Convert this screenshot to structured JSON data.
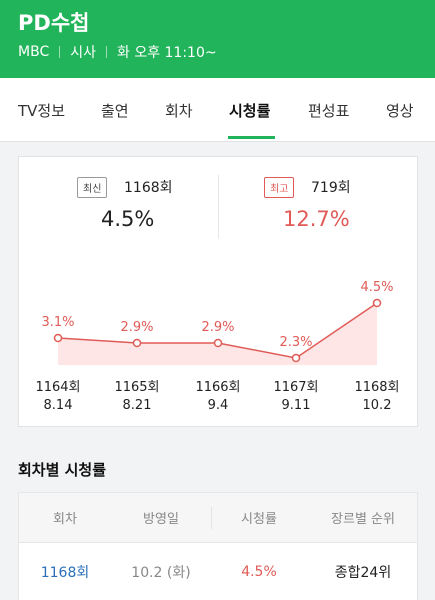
{
  "header": {
    "title": "PD수첩",
    "channel": "MBC",
    "genre": "시사",
    "schedule": "화 오후 11:10~"
  },
  "tabs": [
    {
      "label": "TV정보"
    },
    {
      "label": "출연"
    },
    {
      "label": "회차"
    },
    {
      "label": "시청률"
    },
    {
      "label": "편성표"
    },
    {
      "label": "영상"
    }
  ],
  "active_tab": "시청률",
  "latest": {
    "badge": "최신",
    "episode": "1168회",
    "rating": "4.5%"
  },
  "highest": {
    "badge": "최고",
    "episode": "719회",
    "rating": "12.7%"
  },
  "colors": {
    "brand": "#21b45a",
    "highlight": "#e05b57",
    "link": "#2a6fb8"
  },
  "chart_data": {
    "type": "area",
    "x": [
      "1164회 8.14",
      "1165회 8.21",
      "1166회 9.4",
      "1167회 9.11",
      "1168회 10.2"
    ],
    "episodes": [
      "1164회",
      "1165회",
      "1166회",
      "1167회",
      "1168회"
    ],
    "dates": [
      "8.14",
      "8.21",
      "9.4",
      "9.11",
      "10.2"
    ],
    "values": [
      3.1,
      2.9,
      2.9,
      2.3,
      4.5
    ],
    "data_labels": [
      "3.1%",
      "2.9%",
      "2.9%",
      "2.3%",
      "4.5%"
    ],
    "grid": false,
    "legend": "none"
  },
  "section": {
    "title": "회차별 시청률"
  },
  "table": {
    "headers": [
      "회차",
      "방영일",
      "시청률",
      "장르별 순위"
    ],
    "rows": [
      {
        "episode": "1168회",
        "date": "10.2 (화)",
        "rating": "4.5%",
        "rank": "종합24위"
      }
    ]
  }
}
